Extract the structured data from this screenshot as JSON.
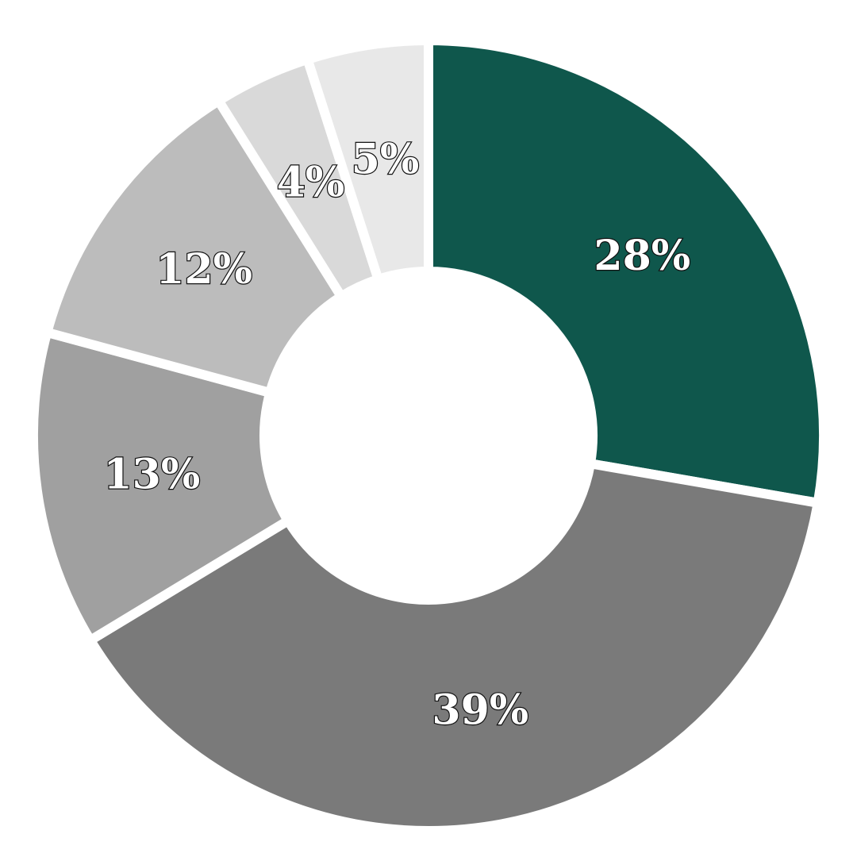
{
  "chart_data": {
    "type": "pie",
    "variant": "donut",
    "categories": [
      "",
      "",
      "",
      "",
      "",
      ""
    ],
    "values": [
      28,
      39,
      13,
      12,
      4,
      5
    ],
    "labels": [
      "28%",
      "39%",
      "13%",
      "12%",
      "4%",
      "5%"
    ],
    "colors": [
      "#0f574c",
      "#7a7a7a",
      "#a0a0a0",
      "#bcbcbc",
      "#d9d9d9",
      "#e8e8e8"
    ],
    "start_angle_deg": 0,
    "direction": "clockwise",
    "title": "",
    "legend": "none"
  }
}
